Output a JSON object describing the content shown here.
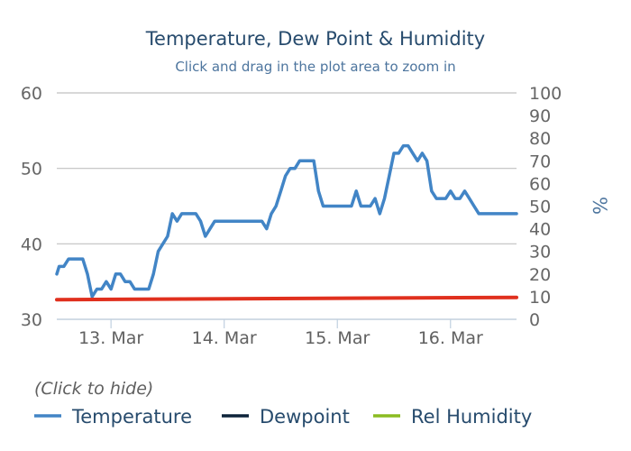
{
  "chart_data": {
    "type": "line",
    "title": "Temperature, Dew Point & Humidity",
    "subtitle": "Click and drag in the plot area to zoom in",
    "x_unit": "hours since 12. Mar 00:00",
    "x_range_hours": [
      12.5,
      110
    ],
    "x_ticks": [
      {
        "hour": 24,
        "label": "13. Mar"
      },
      {
        "hour": 48,
        "label": "14. Mar"
      },
      {
        "hour": 72,
        "label": "15. Mar"
      },
      {
        "hour": 96,
        "label": "16. Mar"
      }
    ],
    "y_left": {
      "ylim": [
        30,
        60
      ],
      "ticks": [
        30,
        40,
        50,
        60
      ]
    },
    "y_right": {
      "ylim": [
        0,
        100
      ],
      "ticks": [
        0,
        10,
        20,
        30,
        40,
        50,
        60,
        70,
        80,
        90,
        100
      ],
      "ylabel": "%"
    },
    "grid": true,
    "legend_placement": "bottom-left",
    "legend_note": "(Click to hide)",
    "series": [
      {
        "name": "Temperature",
        "color": "#4285c6",
        "axis": "left",
        "x": [
          12.5,
          13,
          14,
          15,
          16,
          17,
          18,
          19,
          20,
          21,
          22,
          23,
          24,
          25,
          26,
          27,
          28,
          29,
          30,
          31,
          32,
          33,
          34,
          35,
          36,
          37,
          38,
          39,
          40,
          41,
          42,
          43,
          44,
          45,
          46,
          47,
          48,
          49,
          50,
          51,
          52,
          53,
          54,
          55,
          56,
          57,
          58,
          59,
          60,
          61,
          62,
          63,
          64,
          65,
          66,
          67,
          68,
          69,
          70,
          71,
          72,
          73,
          74,
          75,
          76,
          77,
          78,
          79,
          80,
          81,
          82,
          83,
          84,
          85,
          86,
          87,
          88,
          89,
          90,
          91,
          92,
          93,
          94,
          95,
          96,
          97,
          98,
          99,
          100,
          101,
          102,
          103,
          104,
          105,
          106,
          107,
          108,
          109,
          110
        ],
        "y": [
          36,
          37,
          37,
          38,
          38,
          38,
          38,
          36,
          33,
          34,
          34,
          35,
          34,
          36,
          36,
          35,
          35,
          34,
          34,
          34,
          34,
          36,
          39,
          40,
          41,
          44,
          43,
          44,
          44,
          44,
          44,
          43,
          41,
          42,
          43,
          43,
          43,
          43,
          43,
          43,
          43,
          43,
          43,
          43,
          43,
          42,
          44,
          45,
          47,
          49,
          50,
          50,
          51,
          51,
          51,
          51,
          47,
          45,
          45,
          45,
          45,
          45,
          45,
          45,
          47,
          45,
          45,
          45,
          46,
          44,
          46,
          49,
          52,
          52,
          53,
          53,
          52,
          51,
          52,
          51,
          47,
          46,
          46,
          46,
          47,
          46,
          46,
          47,
          46,
          45,
          44,
          44,
          44,
          44,
          44,
          44,
          44,
          44,
          44
        ]
      },
      {
        "name": "Dewpoint",
        "color": "#0d233a",
        "axis": "left",
        "x": [],
        "y": []
      },
      {
        "name": "Rel Humidity",
        "color": "#8bbc21",
        "axis": "right",
        "x": [],
        "y": []
      },
      {
        "name": "",
        "color": "#e0301e",
        "axis": "left",
        "legend": false,
        "x": [
          12.5,
          110
        ],
        "y": [
          32.6,
          32.9
        ]
      }
    ]
  }
}
